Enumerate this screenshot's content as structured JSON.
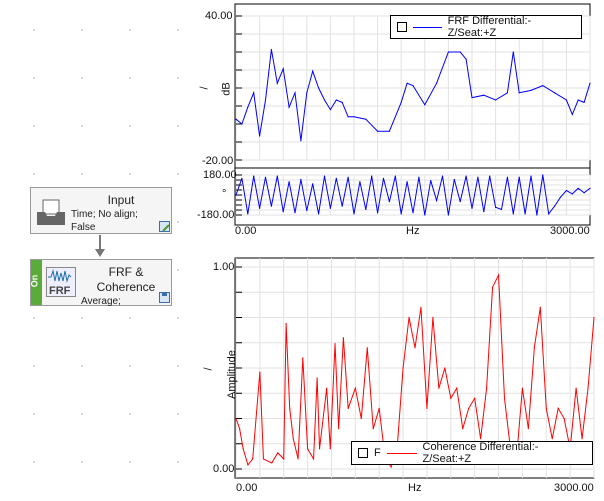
{
  "workflow": {
    "input_node": {
      "title": "Input",
      "line1": "Time; No align;",
      "line2": "False",
      "icon": "inbox-tray-icon",
      "action_icon": "save-link-icon"
    },
    "frf_node": {
      "title_line1": "FRF &",
      "title_line2": "Coherence",
      "sub": "Average;",
      "status": "On",
      "icon": "frf-icon",
      "action_icon": "save-icon",
      "status_color": "#5aab3a"
    }
  },
  "chart_data": [
    {
      "type": "line",
      "legend": {
        "label": "FRF Differential:-Z/Seat:+Z",
        "placement": "top-right"
      },
      "ylabel": "dB",
      "ylabel_prefix": "/",
      "xlabel": "Hz",
      "xlim": [
        0,
        3000
      ],
      "ylim": [
        -20,
        40
      ],
      "yticks_labels": [
        "40.00",
        "-20.00"
      ],
      "xticks_labels": [
        "0.00",
        "3000.00"
      ],
      "color": "#0000ff",
      "grid": true,
      "x": [
        0,
        50,
        100,
        150,
        200,
        250,
        300,
        350,
        400,
        450,
        500,
        550,
        600,
        650,
        700,
        750,
        800,
        850,
        900,
        950,
        1000,
        1100,
        1200,
        1300,
        1400,
        1450,
        1500,
        1600,
        1700,
        1800,
        1900,
        1950,
        2000,
        2100,
        2200,
        2300,
        2350,
        2400,
        2500,
        2600,
        2700,
        2800,
        2850,
        2900,
        2950,
        3000
      ],
      "y": [
        -3,
        -5,
        2,
        8,
        -10,
        5,
        26,
        12,
        18,
        2,
        8,
        -12,
        8,
        17,
        10,
        5,
        1,
        5,
        4,
        -2,
        -2,
        -3,
        -8,
        -8,
        4,
        12,
        11,
        3,
        12,
        25,
        25,
        22,
        6,
        7,
        5,
        8,
        25,
        8,
        9,
        11,
        8,
        5,
        -1,
        5,
        4,
        12
      ]
    },
    {
      "type": "line",
      "role": "phase",
      "ylabel": "°",
      "ylim": [
        -180,
        180
      ],
      "yticks_labels": [
        "180.00",
        "-180.00"
      ],
      "color": "#0000ff",
      "grid": true,
      "x": [
        0,
        50,
        100,
        150,
        200,
        250,
        300,
        350,
        400,
        450,
        500,
        550,
        600,
        650,
        700,
        750,
        800,
        850,
        900,
        950,
        1000,
        1050,
        1100,
        1150,
        1200,
        1250,
        1300,
        1350,
        1400,
        1450,
        1500,
        1550,
        1600,
        1650,
        1700,
        1750,
        1800,
        1850,
        1900,
        1950,
        2000,
        2050,
        2100,
        2150,
        2200,
        2250,
        2300,
        2350,
        2400,
        2450,
        2500,
        2550,
        2600,
        2650,
        2700,
        2750,
        2800,
        2850,
        2900,
        2950,
        3000
      ],
      "y": [
        0,
        150,
        -170,
        170,
        -120,
        160,
        -100,
        170,
        -150,
        120,
        -160,
        140,
        -140,
        100,
        -170,
        170,
        -120,
        150,
        -100,
        160,
        -170,
        120,
        -130,
        170,
        -160,
        150,
        -60,
        170,
        -170,
        120,
        -160,
        160,
        -180,
        130,
        -50,
        170,
        -180,
        140,
        -60,
        170,
        -120,
        160,
        -150,
        170,
        -110,
        -130,
        160,
        -170,
        160,
        -170,
        170,
        -180,
        180,
        -170,
        -100,
        -20,
        40,
        10,
        60,
        20,
        60
      ]
    },
    {
      "type": "line",
      "legend": {
        "checkbox_label": "F",
        "label": "Coherence Differential:-Z/Seat:+Z",
        "placement": "bottom-right"
      },
      "ylabel": "Amplitude",
      "ylabel_prefix": "/",
      "xlabel": "Hz",
      "xlim": [
        0,
        3000
      ],
      "ylim": [
        0,
        1
      ],
      "yticks_labels": [
        "1.00",
        "0.00"
      ],
      "xticks_labels": [
        "0.00",
        "3000.00"
      ],
      "color": "#ff0000",
      "grid": true,
      "x": [
        0,
        30,
        60,
        100,
        140,
        200,
        230,
        300,
        350,
        400,
        420,
        450,
        480,
        520,
        560,
        600,
        650,
        680,
        700,
        760,
        790,
        830,
        860,
        900,
        940,
        1000,
        1050,
        1100,
        1150,
        1200,
        1250,
        1300,
        1350,
        1400,
        1450,
        1500,
        1550,
        1600,
        1650,
        1700,
        1750,
        1800,
        1850,
        1900,
        1950,
        2000,
        2050,
        2100,
        2150,
        2200,
        2250,
        2300,
        2350,
        2400,
        2450,
        2500,
        2550,
        2600,
        2650,
        2700,
        2750,
        2800,
        2850,
        2900,
        2950,
        3000
      ],
      "y": [
        0.25,
        0.2,
        0.1,
        0.02,
        0.05,
        0.48,
        0.05,
        0.03,
        0.08,
        0.05,
        0.72,
        0.3,
        0.15,
        0.05,
        0.55,
        0.1,
        0.05,
        0.45,
        0.1,
        0.4,
        0.1,
        0.62,
        0.2,
        0.65,
        0.3,
        0.4,
        0.25,
        0.6,
        0.2,
        0.3,
        0.05,
        0.01,
        0.1,
        0.5,
        0.75,
        0.6,
        0.8,
        0.3,
        0.75,
        0.4,
        0.5,
        0.35,
        0.4,
        0.2,
        0.3,
        0.35,
        0.15,
        0.4,
        0.9,
        0.96,
        0.35,
        0.1,
        0.05,
        0.4,
        0.2,
        0.6,
        0.8,
        0.3,
        0.15,
        0.3,
        0.25,
        0.1,
        0.4,
        0.15,
        0.4,
        0.75
      ]
    }
  ]
}
